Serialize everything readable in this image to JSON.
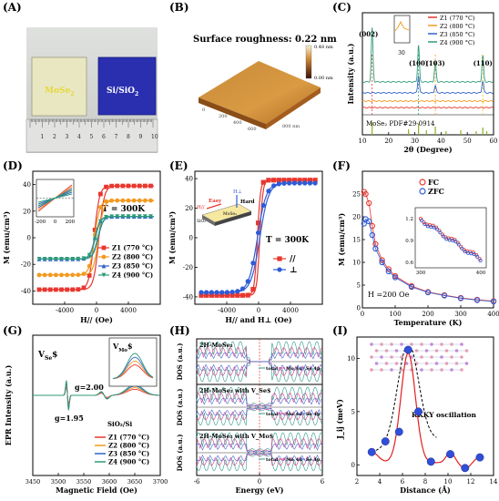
{
  "panels": [
    {
      "id": "A",
      "label": "(A)"
    },
    {
      "id": "B",
      "label": "(B)"
    },
    {
      "id": "C",
      "label": "(C)"
    },
    {
      "id": "D",
      "label": "(D)"
    },
    {
      "id": "E",
      "label": "(E)"
    },
    {
      "id": "F",
      "label": "(F)"
    },
    {
      "id": "G",
      "label": "(G)"
    },
    {
      "id": "H",
      "label": "(H)"
    },
    {
      "id": "I",
      "label": "(I)"
    }
  ],
  "photo": {
    "sample1": "MoSe",
    "sample1_sub": "2",
    "sample2": "Si/SiO",
    "sample2_sub": "2",
    "ruler_numbers": [
      "1",
      "2",
      "3",
      "4",
      "5",
      "6",
      "7",
      "8",
      "9",
      "10"
    ]
  },
  "afm": {
    "title": "Surface roughness: 0.22 nm",
    "colorbar_top": "0.48 nm",
    "colorbar_bottom": "0.00 nm",
    "axis_ticks": [
      "0",
      "200",
      "400",
      "600",
      "800 nm"
    ]
  },
  "chart_data": [
    {
      "panel": "C",
      "type": "line",
      "xlabel": "2θ (Degree)",
      "ylabel": "Intensity (a.u.)",
      "xlim": [
        10,
        60
      ],
      "xticks": [
        10,
        20,
        30,
        40,
        50,
        60
      ],
      "series": [
        {
          "name": "Z1 (770 °C)",
          "color": "#e8372f",
          "offset": 0.05,
          "peaks": []
        },
        {
          "name": "Z2 (800 °C)",
          "color": "#f29a1f",
          "offset": 0.17,
          "peaks": []
        },
        {
          "name": "Z3 (850 °C)",
          "color": "#2f62c8",
          "offset": 0.32,
          "peaks": [
            [
              31.4,
              0.14
            ],
            [
              37.8,
              0.06
            ],
            [
              55.9,
              0.1
            ]
          ]
        },
        {
          "name": "Z4 (900 °C)",
          "color": "#2e9a7a",
          "offset": 0.52,
          "peaks": [
            [
              13.7,
              0.44
            ],
            [
              31.4,
              0.3
            ],
            [
              37.8,
              0.16
            ],
            [
              55.9,
              0.22
            ]
          ]
        }
      ],
      "peak_labels": [
        "(002)",
        "(100)",
        "(103)",
        "(110)"
      ],
      "peak_label_x": [
        13.7,
        31.4,
        37.8,
        55.9
      ],
      "inset_label": "30",
      "reference": "MoSe₂ PDF#29-0914",
      "reference_lines": [
        13.7,
        27.6,
        31.4,
        34.4,
        37.8,
        41.9,
        47.5,
        53.4,
        55.9,
        57.4
      ]
    },
    {
      "panel": "D",
      "type": "line",
      "xlabel": "H// (Oe)",
      "ylabel": "M (emu/cm³)",
      "xlim": [
        -8000,
        8000
      ],
      "ylim": [
        -50,
        50
      ],
      "xticks": [
        -4000,
        0,
        4000
      ],
      "yticks": [
        -40,
        -20,
        0,
        20,
        40
      ],
      "annotation": "T = 300K",
      "series": [
        {
          "name": "Z1 (770 °C)",
          "color": "#e8372f",
          "marker": "square",
          "ms": 39,
          "hc": 300
        },
        {
          "name": "Z2 (800 °C)",
          "color": "#f29a1f",
          "marker": "circle",
          "ms": 28,
          "hc": 250
        },
        {
          "name": "Z3 (850 °C)",
          "color": "#2f62c8",
          "marker": "triangle",
          "ms": 16,
          "hc": 200
        },
        {
          "name": "Z4 (900 °C)",
          "color": "#2e9a7a",
          "marker": "triangle-down",
          "ms": 16,
          "hc": 150
        }
      ],
      "inset_xticks": [
        -200,
        0,
        200
      ]
    },
    {
      "panel": "E",
      "type": "line",
      "xlabel": "H// and H⊥ (Oe)",
      "ylabel": "M (emu/cm³)",
      "xlim": [
        -8000,
        8000
      ],
      "ylim": [
        -45,
        45
      ],
      "xticks": [
        -4000,
        0,
        4000
      ],
      "yticks": [
        -40,
        -20,
        0,
        20,
        40
      ],
      "annotation": "T = 300K",
      "series": [
        {
          "name": "//",
          "color": "#e8372f",
          "marker": "square",
          "ms": 39,
          "w": 380
        },
        {
          "name": "⊥",
          "color": "#2f5bd6",
          "marker": "circle",
          "ms": 37,
          "w": 1100
        }
      ],
      "inset_labels": {
        "easy": "Easy",
        "hard": "Hard",
        "sio2": "SiO₂",
        "mose2": "MoSe₂",
        "hpar": "H//",
        "hperp": "H⊥"
      }
    },
    {
      "panel": "F",
      "type": "line",
      "xlabel": "Temperature (K)",
      "ylabel": "M (emu/cm³)",
      "xlim": [
        0,
        400
      ],
      "ylim": [
        0,
        30
      ],
      "xticks": [
        0,
        100,
        200,
        300,
        400
      ],
      "yticks": [
        0,
        5,
        10,
        15,
        20,
        25
      ],
      "annotation": "H =200 Oe",
      "series": [
        {
          "name": "FC",
          "color": "#e8372f",
          "values": [
            [
              5,
              25.5
            ],
            [
              10,
              25
            ],
            [
              20,
              23
            ],
            [
              30,
              18
            ],
            [
              40,
              14
            ],
            [
              60,
              10.5
            ],
            [
              80,
              8.5
            ],
            [
              100,
              7
            ],
            [
              150,
              4.8
            ],
            [
              200,
              3.5
            ],
            [
              250,
              2.8
            ],
            [
              300,
              2.2
            ],
            [
              350,
              1.8
            ],
            [
              400,
              1.5
            ]
          ]
        },
        {
          "name": "ZFC",
          "color": "#2f5bd6",
          "values": [
            [
              5,
              18.5
            ],
            [
              10,
              19.5
            ],
            [
              20,
              19
            ],
            [
              30,
              16
            ],
            [
              40,
              13
            ],
            [
              60,
              10
            ],
            [
              80,
              8
            ],
            [
              100,
              6.7
            ],
            [
              150,
              4.6
            ],
            [
              200,
              3.4
            ],
            [
              250,
              2.7
            ],
            [
              300,
              2.1
            ],
            [
              350,
              1.7
            ],
            [
              400,
              1.4
            ]
          ]
        }
      ],
      "inset_yticks": [
        "0.6",
        "0.9",
        "1.2"
      ],
      "inset_xticks": [
        "300",
        "400"
      ]
    },
    {
      "panel": "G",
      "type": "line",
      "xlabel": "Magnetic Field (Oe)",
      "ylabel": "EPR Intensity (a.u.)",
      "xlim": [
        3450,
        3700
      ],
      "xticks": [
        3450,
        3500,
        3550,
        3600,
        3650,
        3700
      ],
      "series": [
        {
          "name": "Z1 (770 °C)",
          "color": "#e8372f",
          "amp": 0.22
        },
        {
          "name": "Z2 (800 °C)",
          "color": "#f29a1f",
          "amp": 0.28
        },
        {
          "name": "Z3 (850 °C)",
          "color": "#2f62c8",
          "amp": 0.34
        },
        {
          "name": "Z4 (900 °C)",
          "color": "#2e9a7a",
          "amp": 0.4
        }
      ],
      "labels": {
        "vse": "V",
        "vse_sub": "Se",
        "vse_sym": "$",
        "vmo": "V",
        "vmo_sub": "Mo",
        "vmo_sym": "$",
        "g1": "g=2.00",
        "g2": "g=1.95",
        "sio2": "SiO₂/Si"
      }
    },
    {
      "panel": "H",
      "type": "line",
      "xlabel": "Energy (eV)",
      "ylabel": "DOS (a.u.)",
      "xlim": [
        -6,
        6
      ],
      "xticks": [
        -6,
        0,
        6
      ],
      "sublabels": [
        "2H-MoSe₂",
        "2H-MoSe₂ with V_Se$",
        "2H-MoSe₂ with V_Mo$"
      ],
      "legend": [
        "total",
        "Mo 4d",
        "Se 4p"
      ],
      "colors": {
        "total": "#2e9a8a",
        "mo": "#d9388c",
        "se": "#4466cc"
      }
    },
    {
      "panel": "I",
      "type": "scatter",
      "xlabel": "Distance (Å)",
      "ylabel": "J_ij (meV)",
      "xlim": [
        2,
        14
      ],
      "ylim": [
        -1,
        12
      ],
      "xticks": [
        2,
        4,
        6,
        8,
        10,
        12,
        14
      ],
      "yticks": [
        0,
        5,
        10
      ],
      "annotation": "RKKY oscillation",
      "values": [
        [
          3.3,
          1.2
        ],
        [
          4.5,
          2.2
        ],
        [
          5.7,
          3.1
        ],
        [
          6.5,
          10.8
        ],
        [
          7.4,
          5
        ],
        [
          8.5,
          0.3
        ],
        [
          10.2,
          1
        ],
        [
          11.5,
          -0.3
        ],
        [
          12.8,
          0.7
        ]
      ]
    }
  ]
}
